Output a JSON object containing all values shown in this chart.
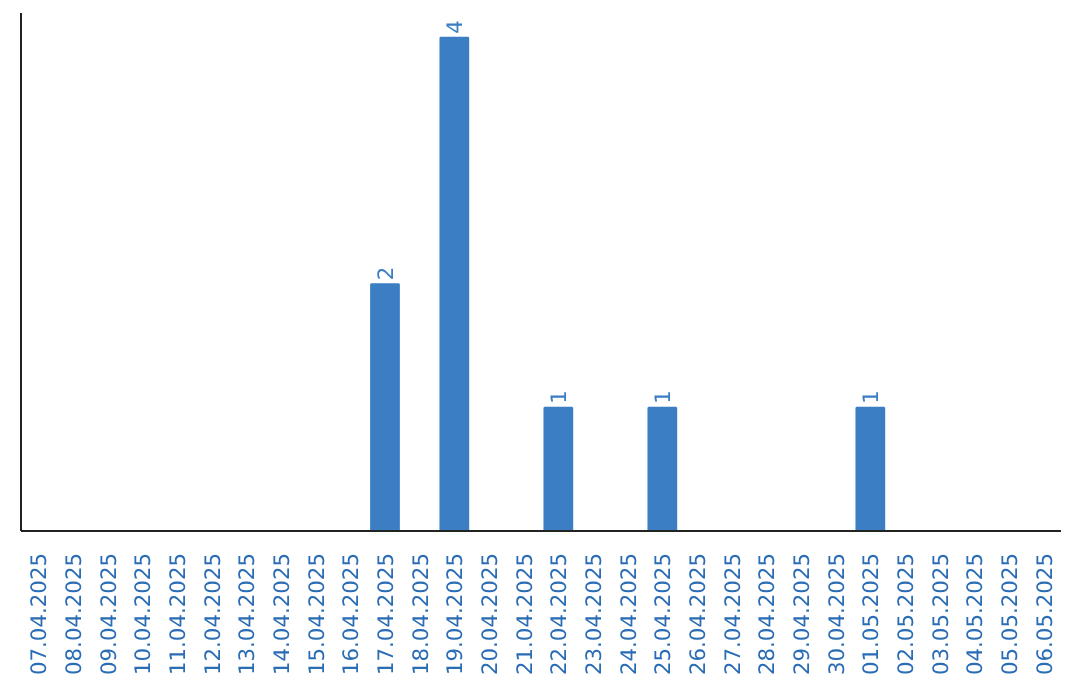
{
  "chart_data": {
    "type": "bar",
    "categories": [
      "07.04.2025",
      "08.04.2025",
      "09.04.2025",
      "10.04.2025",
      "11.04.2025",
      "12.04.2025",
      "13.04.2025",
      "14.04.2025",
      "15.04.2025",
      "16.04.2025",
      "17.04.2025",
      "18.04.2025",
      "19.04.2025",
      "20.04.2025",
      "21.04.2025",
      "22.04.2025",
      "23.04.2025",
      "24.04.2025",
      "25.04.2025",
      "26.04.2025",
      "27.04.2025",
      "28.04.2025",
      "29.04.2025",
      "30.04.2025",
      "01.05.2025",
      "02.05.2025",
      "03.05.2025",
      "04.05.2025",
      "05.05.2025",
      "06.05.2025"
    ],
    "values": [
      0,
      0,
      0,
      0,
      0,
      0,
      0,
      0,
      0,
      0,
      2,
      0,
      4,
      0,
      0,
      1,
      0,
      0,
      1,
      0,
      0,
      0,
      0,
      0,
      1,
      0,
      0,
      0,
      0,
      0
    ],
    "value_labels": [
      null,
      null,
      null,
      null,
      null,
      null,
      null,
      null,
      null,
      null,
      "2",
      null,
      "4",
      null,
      null,
      "1",
      null,
      null,
      "1",
      null,
      null,
      null,
      null,
      null,
      "1",
      null,
      null,
      null,
      null,
      null
    ],
    "color": "#3b7ec3"
  }
}
